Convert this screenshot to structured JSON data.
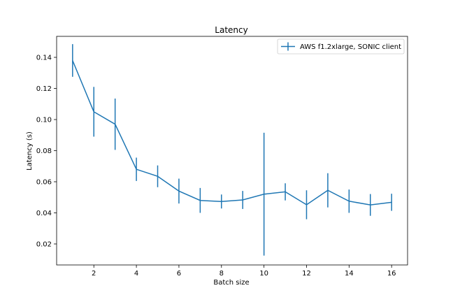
{
  "chart_data": {
    "type": "line",
    "title": "Latency",
    "xlabel": "Batch size",
    "ylabel": "Latency (s)",
    "xlim": [
      0.25,
      16.75
    ],
    "ylim": [
      0.0065,
      0.1535
    ],
    "xticks": [
      2,
      4,
      6,
      8,
      10,
      12,
      14,
      16
    ],
    "xtick_labels": [
      "2",
      "4",
      "6",
      "8",
      "10",
      "12",
      "14",
      "16"
    ],
    "yticks": [
      0.02,
      0.04,
      0.06,
      0.08,
      0.1,
      0.12,
      0.14
    ],
    "ytick_labels": [
      "0.02",
      "0.04",
      "0.06",
      "0.08",
      "0.10",
      "0.12",
      "0.14"
    ],
    "grid": false,
    "legend_position": "top-right",
    "series": [
      {
        "name": "AWS f1.2xlarge, SONIC client",
        "color": "#1f77b4",
        "x": [
          1,
          2,
          3,
          4,
          5,
          6,
          7,
          8,
          9,
          10,
          11,
          12,
          13,
          14,
          15,
          16
        ],
        "y": [
          0.138,
          0.105,
          0.097,
          0.068,
          0.0635,
          0.054,
          0.048,
          0.0473,
          0.0483,
          0.052,
          0.0535,
          0.0452,
          0.0545,
          0.0475,
          0.0451,
          0.0468
        ],
        "yerr": [
          0.0105,
          0.016,
          0.0165,
          0.0075,
          0.007,
          0.008,
          0.008,
          0.0045,
          0.0058,
          0.0395,
          0.0055,
          0.0093,
          0.011,
          0.0075,
          0.007,
          0.0055
        ]
      }
    ]
  }
}
